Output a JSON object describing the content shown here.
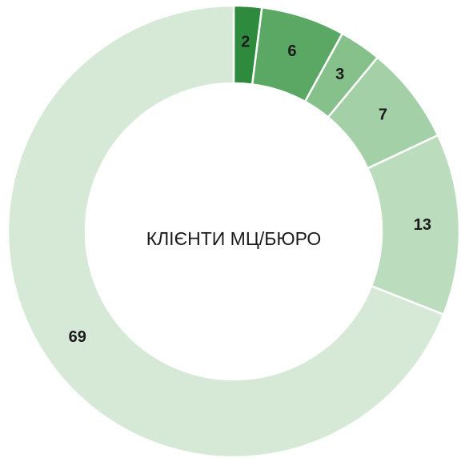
{
  "chart_data": {
    "type": "pie",
    "center_label": "КЛІЄНТИ МЦ/БЮРО",
    "values": [
      2,
      6,
      3,
      7,
      13,
      69
    ],
    "colors": [
      "#2e8b3e",
      "#5aa864",
      "#86c08a",
      "#a3d0a6",
      "#bcdcbe",
      "#d6e9d7"
    ]
  }
}
